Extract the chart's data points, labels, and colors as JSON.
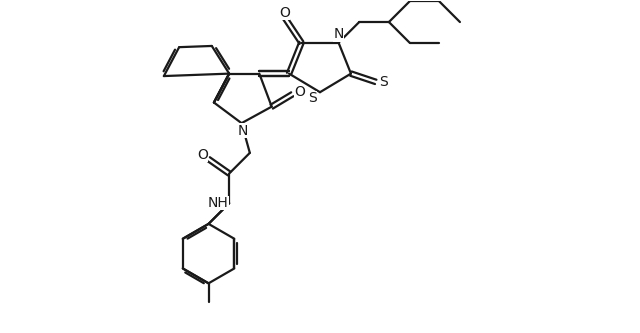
{
  "bg_color": "#ffffff",
  "line_color": "#1a1a1a",
  "line_width": 1.6,
  "font_size": 10,
  "figsize": [
    6.4,
    3.33
  ],
  "dpi": 100,
  "xlim": [
    -1.0,
    9.5
  ],
  "ylim": [
    -0.5,
    7.5
  ]
}
